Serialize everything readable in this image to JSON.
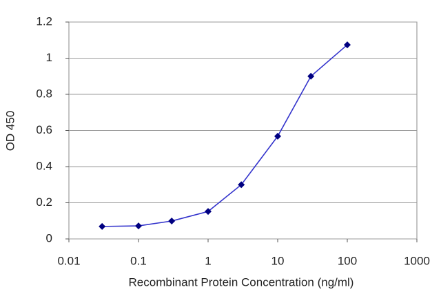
{
  "chart_data": {
    "type": "line",
    "x_label": "Recombinant Protein Concentration (ng/ml)",
    "y_label": "OD 450",
    "xscale": "log",
    "grid": true,
    "series": [
      {
        "color": "#3333cc",
        "marker_color": "#000080",
        "x": [
          0.03,
          0.1,
          0.3,
          1,
          3,
          10,
          30,
          100
        ],
        "values": [
          0.069,
          0.072,
          0.099,
          0.152,
          0.3,
          0.568,
          0.9,
          1.074
        ]
      }
    ],
    "xlim": [
      0.01,
      1000
    ],
    "xticks": [
      0.01,
      0.1,
      1,
      10,
      100,
      1000
    ],
    "ylim": [
      0,
      1.2
    ],
    "yticks": [
      0,
      0.2,
      0.4,
      0.6,
      0.8,
      1,
      1.2
    ]
  }
}
